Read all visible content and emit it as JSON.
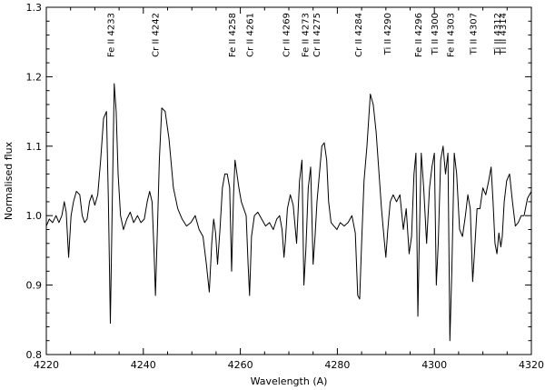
{
  "chart_data": {
    "type": "line",
    "title": "",
    "xlabel": "Wavelength (A)",
    "ylabel": "Normalised flux",
    "xlim": [
      4220,
      4320
    ],
    "ylim": [
      0.8,
      1.3
    ],
    "xticks": [
      4220,
      4240,
      4260,
      4280,
      4300,
      4320
    ],
    "yticks": [
      0.8,
      0.9,
      1.0,
      1.1,
      1.2,
      1.3
    ],
    "xtick_labels": [
      "4220",
      "4240",
      "4260",
      "4280",
      "4300",
      "4320"
    ],
    "ytick_labels": [
      "0.8",
      "0.9",
      "1.0",
      "1.1",
      "1.2",
      "1.3"
    ],
    "grid": false,
    "line_color": "#000000",
    "line_ids": [
      {
        "label": "Fe II 4233",
        "wavelength": 4233.2
      },
      {
        "label": "Cr II 4242",
        "wavelength": 4242.4
      },
      {
        "label": "Fe II 4258",
        "wavelength": 4258.2
      },
      {
        "label": "Cr II 4261",
        "wavelength": 4261.9
      },
      {
        "label": "Cr II 4269",
        "wavelength": 4269.3
      },
      {
        "label": "Fe II 4273",
        "wavelength": 4273.3
      },
      {
        "label": "Cr II 4275",
        "wavelength": 4275.6
      },
      {
        "label": "Cr II 4284",
        "wavelength": 4284.2
      },
      {
        "label": "Ti II 4290",
        "wavelength": 4290.2
      },
      {
        "label": "Fe II 4296",
        "wavelength": 4296.6
      },
      {
        "label": "Ti II 4300",
        "wavelength": 4300.0
      },
      {
        "label": "Fe II 4303",
        "wavelength": 4303.2
      },
      {
        "label": "Ti II 4307",
        "wavelength": 4307.9
      },
      {
        "label": "Ti II 4312",
        "wavelength": 4312.9
      },
      {
        "label": "Ti II 4314",
        "wavelength": 4314.0
      }
    ],
    "series": [
      {
        "x": [
          4220.0,
          4220.6,
          4221.3,
          4222.0,
          4222.6,
          4223.2,
          4223.7,
          4224.1,
          4224.6,
          4225.1,
          4225.6,
          4226.2,
          4226.9,
          4227.4,
          4227.9,
          4228.4,
          4228.9,
          4229.4,
          4230.0,
          4230.6,
          4231.2,
          4231.8,
          4232.4,
          4232.8,
          4233.2,
          4233.6,
          4234.0,
          4234.4,
          4234.8,
          4235.3,
          4235.9,
          4236.6,
          4237.3,
          4238.0,
          4238.8,
          4239.5,
          4240.2,
          4240.8,
          4241.3,
          4241.8,
          4242.2,
          4242.5,
          4242.9,
          4243.3,
          4243.8,
          4244.5,
          4245.3,
          4246.2,
          4247.1,
          4248.0,
          4248.9,
          4249.8,
          4250.7,
          4251.5,
          4252.3,
          4253.0,
          4253.6,
          4254.1,
          4254.5,
          4254.9,
          4255.3,
          4255.8,
          4256.3,
          4256.8,
          4257.3,
          4257.8,
          4258.2,
          4258.6,
          4258.9,
          4259.3,
          4259.7,
          4260.2,
          4260.7,
          4261.2,
          4261.6,
          4261.9,
          4262.3,
          4262.9,
          4263.6,
          4264.4,
          4265.2,
          4266.0,
          4266.8,
          4267.5,
          4268.1,
          4268.6,
          4269.0,
          4269.3,
          4269.7,
          4270.3,
          4270.9,
          4271.6,
          4272.2,
          4272.7,
          4273.1,
          4273.5,
          4274.0,
          4274.5,
          4275.0,
          4275.4,
          4275.8,
          4276.3,
          4276.8,
          4277.3,
          4277.8,
          4278.2,
          4278.7,
          4279.3,
          4279.9,
          4280.6,
          4281.4,
          4282.2,
          4283.0,
          4283.7,
          4284.2,
          4284.6,
          4285.0,
          4285.5,
          4286.1,
          4286.8,
          4287.4,
          4288.0,
          4288.6,
          4289.1,
          4289.6,
          4290.0,
          4290.4,
          4290.9,
          4291.5,
          4292.2,
          4292.9,
          4293.6,
          4294.2,
          4294.8,
          4295.3,
          4295.8,
          4296.2,
          4296.6,
          4296.9,
          4297.3,
          4297.8,
          4298.4,
          4299.0,
          4299.5,
          4300.0,
          4300.4,
          4300.8,
          4301.3,
          4301.8,
          4302.3,
          4302.8,
          4303.2,
          4303.6,
          4304.1,
          4304.6,
          4305.2,
          4305.8,
          4306.4,
          4306.9,
          4307.4,
          4307.9,
          4308.3,
          4308.8,
          4309.4,
          4310.0,
          4310.6,
          4311.2,
          4311.7,
          4312.1,
          4312.5,
          4312.9,
          4313.3,
          4313.7,
          4314.0,
          4314.4,
          4314.9,
          4315.5,
          4316.1,
          4316.7,
          4317.3,
          4317.9,
          4318.5,
          4319.2,
          4320.0
        ],
        "y": [
          0.985,
          0.995,
          0.99,
          1.0,
          0.99,
          1.0,
          1.02,
          1.005,
          0.94,
          1.0,
          1.02,
          1.035,
          1.03,
          1.0,
          0.99,
          0.995,
          1.02,
          1.03,
          1.015,
          1.03,
          1.08,
          1.14,
          1.15,
          1.02,
          0.845,
          1.02,
          1.19,
          1.15,
          1.06,
          1.0,
          0.98,
          0.995,
          1.005,
          0.99,
          1.0,
          0.99,
          0.995,
          1.02,
          1.035,
          1.02,
          0.95,
          0.885,
          0.98,
          1.08,
          1.155,
          1.15,
          1.11,
          1.04,
          1.01,
          0.995,
          0.985,
          0.99,
          1.0,
          0.98,
          0.97,
          0.93,
          0.89,
          0.96,
          0.995,
          0.975,
          0.93,
          0.98,
          1.04,
          1.06,
          1.06,
          1.04,
          0.92,
          1.03,
          1.08,
          1.06,
          1.04,
          1.02,
          1.01,
          1.0,
          0.93,
          0.885,
          0.97,
          1.0,
          1.005,
          0.995,
          0.985,
          0.99,
          0.98,
          0.995,
          1.0,
          0.98,
          0.94,
          0.965,
          1.01,
          1.03,
          1.015,
          0.96,
          1.05,
          1.08,
          0.9,
          0.95,
          1.04,
          1.07,
          0.93,
          0.97,
          1.02,
          1.06,
          1.1,
          1.105,
          1.08,
          1.02,
          0.99,
          0.985,
          0.98,
          0.99,
          0.985,
          0.99,
          1.0,
          0.975,
          0.885,
          0.88,
          0.96,
          1.05,
          1.1,
          1.175,
          1.16,
          1.12,
          1.06,
          1.01,
          0.97,
          0.94,
          0.98,
          1.02,
          1.03,
          1.02,
          1.03,
          0.98,
          1.01,
          0.945,
          0.97,
          1.06,
          1.09,
          0.855,
          0.97,
          1.09,
          1.04,
          0.96,
          1.04,
          1.07,
          1.09,
          0.9,
          0.96,
          1.08,
          1.1,
          1.06,
          1.09,
          0.82,
          0.92,
          1.09,
          1.06,
          0.98,
          0.97,
          1.0,
          1.03,
          1.01,
          0.905,
          0.95,
          1.01,
          1.01,
          1.04,
          1.03,
          1.05,
          1.07,
          1.02,
          0.96,
          0.945,
          0.975,
          0.955,
          0.97,
          1.02,
          1.05,
          1.06,
          1.02,
          0.985,
          0.99,
          1.0,
          1.0,
          1.025,
          1.035
        ]
      }
    ]
  }
}
